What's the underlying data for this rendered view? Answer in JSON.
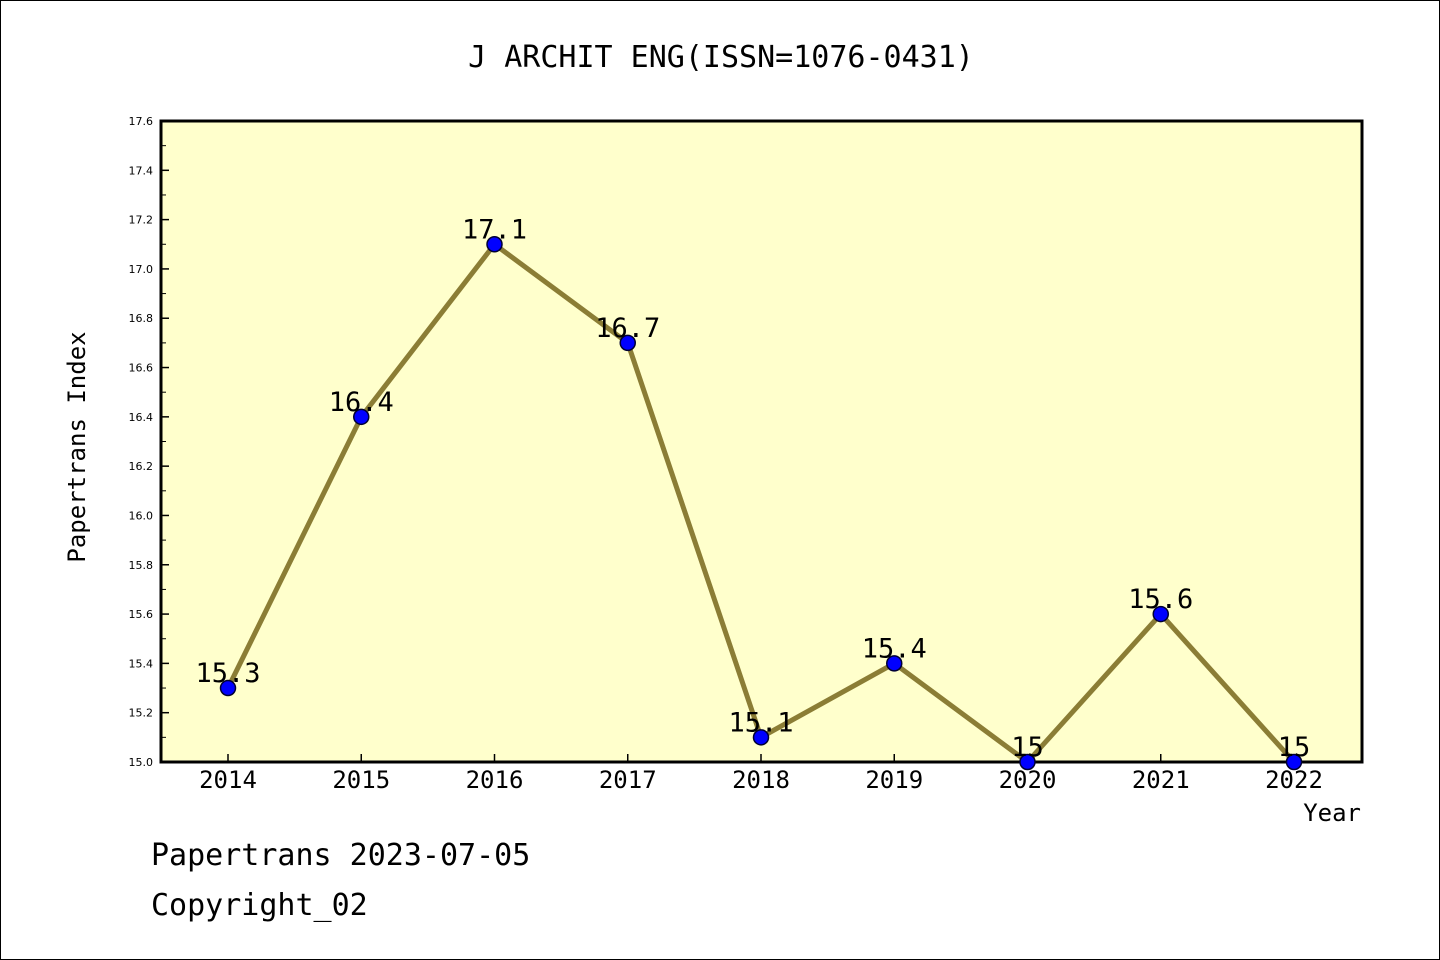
{
  "chart_data": {
    "type": "line",
    "title": "J ARCHIT ENG(ISSN=1076-0431)",
    "xlabel": "Year",
    "ylabel": "Papertrans Index",
    "categories": [
      "2014",
      "2015",
      "2016",
      "2017",
      "2018",
      "2019",
      "2020",
      "2021",
      "2022"
    ],
    "values": [
      15.3,
      16.4,
      17.1,
      16.7,
      15.1,
      15.4,
      15.0,
      15.6,
      15.0
    ],
    "data_labels": [
      "15.3",
      "16.4",
      "17.1",
      "16.7",
      "15.1",
      "15.4",
      "15",
      "15.6",
      "15"
    ],
    "ylim": [
      15.0,
      17.6
    ],
    "yticks": [
      "15.0",
      "15.2",
      "15.4",
      "15.6",
      "15.8",
      "16.0",
      "16.2",
      "16.4",
      "16.6",
      "16.8",
      "17.0",
      "17.2",
      "17.4",
      "17.6"
    ],
    "grid": false,
    "colors": {
      "plot_background": "#ffffcc",
      "line": "#8b7d35",
      "marker": "#0000ff",
      "marker_edge": "#000033"
    }
  },
  "footer": {
    "line1": "Papertrans 2023-07-05",
    "line2": "Copyright_02"
  }
}
